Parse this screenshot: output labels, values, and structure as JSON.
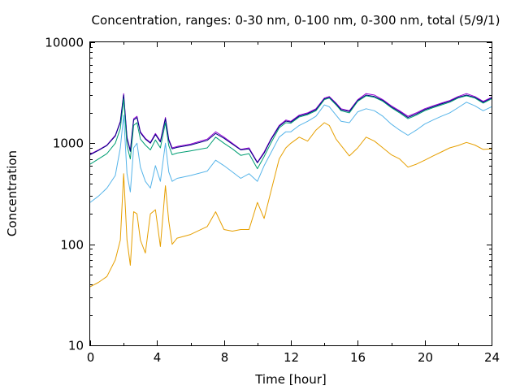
{
  "chart_data": {
    "type": "line",
    "title": "Concentration, ranges: 0-30 nm, 0-100 nm, 0-300 nm, total (5/9/1)",
    "xlabel": "Time [hour]",
    "ylabel": "Concentration",
    "xlim": [
      0,
      24
    ],
    "ylim": [
      10,
      10000
    ],
    "yscale": "log",
    "grid": false,
    "legend": "none",
    "x_ticks": [
      0,
      4,
      8,
      12,
      16,
      20,
      24
    ],
    "x_tick_labels": [
      "0",
      "4",
      "8",
      "12",
      "16",
      "20",
      "24"
    ],
    "y_ticks": [
      10,
      100,
      1000,
      10000
    ],
    "y_tick_labels": [
      "10",
      "100",
      "1000",
      "10000"
    ],
    "x": [
      0,
      0.5,
      1,
      1.5,
      1.8,
      2,
      2.2,
      2.4,
      2.6,
      2.8,
      3.0,
      3.3,
      3.6,
      3.9,
      4.2,
      4.5,
      4.7,
      4.9,
      5.2,
      6,
      7,
      7.5,
      8,
      8.5,
      9,
      9.5,
      10,
      10.4,
      10.8,
      11.3,
      11.7,
      12,
      12.5,
      13,
      13.5,
      14,
      14.3,
      14.7,
      15,
      15.5,
      16,
      16.5,
      17,
      17.5,
      18,
      18.5,
      19,
      19.5,
      20,
      20.5,
      21,
      21.5,
      22,
      22.5,
      23,
      23.5,
      24
    ],
    "series": [
      {
        "color": "#9400d3",
        "values": [
          780,
          860,
          960,
          1200,
          1650,
          3100,
          1150,
          850,
          1750,
          1850,
          1300,
          1120,
          1020,
          1250,
          1050,
          1800,
          1100,
          900,
          930,
          980,
          1100,
          1300,
          1150,
          1000,
          870,
          900,
          650,
          820,
          1100,
          1500,
          1700,
          1650,
          1900,
          2000,
          2200,
          2800,
          2900,
          2500,
          2200,
          2100,
          2700,
          3100,
          3000,
          2700,
          2350,
          2100,
          1850,
          2000,
          2200,
          2350,
          2500,
          2650,
          2900,
          3100,
          2900,
          2600,
          2850
        ]
      },
      {
        "color": "#000080",
        "values": [
          770,
          850,
          950,
          1180,
          1620,
          3000,
          1120,
          830,
          1700,
          1800,
          1270,
          1100,
          1000,
          1220,
          1030,
          1750,
          1070,
          880,
          910,
          960,
          1070,
          1250,
          1120,
          980,
          860,
          880,
          640,
          800,
          1080,
          1470,
          1660,
          1620,
          1860,
          1960,
          2150,
          2750,
          2850,
          2450,
          2150,
          2060,
          2650,
          3000,
          2900,
          2650,
          2300,
          2050,
          1800,
          1950,
          2150,
          2300,
          2450,
          2600,
          2850,
          3000,
          2850,
          2550,
          2800
        ]
      },
      {
        "color": "#009e73",
        "values": [
          620,
          700,
          790,
          1000,
          1400,
          2750,
          950,
          700,
          1500,
          1600,
          1100,
          960,
          860,
          1080,
          900,
          1600,
          950,
          770,
          800,
          840,
          900,
          1150,
          1000,
          880,
          760,
          790,
          560,
          740,
          1000,
          1420,
          1600,
          1580,
          1820,
          1920,
          2100,
          2700,
          2800,
          2400,
          2100,
          2000,
          2600,
          2950,
          2850,
          2600,
          2250,
          2000,
          1750,
          1900,
          2100,
          2250,
          2400,
          2550,
          2800,
          2950,
          2800,
          2500,
          2750
        ]
      },
      {
        "color": "#56b4e9",
        "values": [
          260,
          300,
          360,
          480,
          900,
          1900,
          500,
          330,
          900,
          1000,
          580,
          420,
          360,
          600,
          420,
          1000,
          520,
          420,
          450,
          480,
          530,
          680,
          600,
          520,
          450,
          500,
          420,
          600,
          800,
          1150,
          1300,
          1300,
          1500,
          1650,
          1850,
          2400,
          2300,
          1900,
          1650,
          1600,
          2050,
          2200,
          2100,
          1850,
          1550,
          1350,
          1200,
          1350,
          1550,
          1700,
          1850,
          2000,
          2250,
          2550,
          2350,
          2100,
          2300
        ]
      },
      {
        "color": "#e69f00",
        "values": [
          38,
          42,
          48,
          70,
          110,
          500,
          110,
          62,
          210,
          200,
          110,
          82,
          200,
          220,
          95,
          380,
          170,
          100,
          115,
          125,
          150,
          210,
          140,
          135,
          140,
          140,
          260,
          180,
          330,
          700,
          900,
          1000,
          1150,
          1050,
          1350,
          1600,
          1500,
          1100,
          950,
          750,
          900,
          1150,
          1050,
          900,
          770,
          700,
          580,
          620,
          680,
          750,
          820,
          900,
          950,
          1020,
          960,
          870,
          880
        ]
      }
    ]
  }
}
